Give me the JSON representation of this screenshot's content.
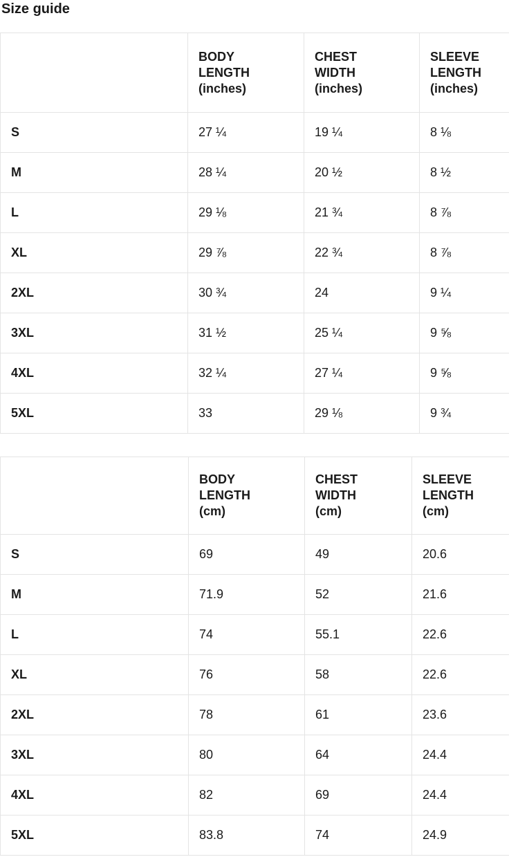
{
  "page": {
    "title": "Size guide"
  },
  "colors": {
    "background": "#ffffff",
    "text": "#1a1a1a",
    "table_border": "#e4e4e4"
  },
  "tables": [
    {
      "name": "sizes-inches",
      "headers": [
        "",
        "BODY\nLENGTH\n(inches)",
        "CHEST\nWIDTH\n(inches)",
        "SLEEVE\nLENGTH\n(inches)"
      ],
      "rows": [
        {
          "size": "S",
          "body_length": "27 ¼",
          "chest_width": "19 ¼",
          "sleeve_length": "8 ⅛"
        },
        {
          "size": "M",
          "body_length": "28 ¼",
          "chest_width": "20 ½",
          "sleeve_length": "8 ½"
        },
        {
          "size": "L",
          "body_length": "29 ⅛",
          "chest_width": "21 ¾",
          "sleeve_length": "8 ⅞"
        },
        {
          "size": "XL",
          "body_length": "29 ⅞",
          "chest_width": "22 ¾",
          "sleeve_length": "8 ⅞"
        },
        {
          "size": "2XL",
          "body_length": "30 ¾",
          "chest_width": "24",
          "sleeve_length": "9 ¼"
        },
        {
          "size": "3XL",
          "body_length": "31 ½",
          "chest_width": "25 ¼",
          "sleeve_length": "9 ⅝"
        },
        {
          "size": "4XL",
          "body_length": "32 ¼",
          "chest_width": "27 ¼",
          "sleeve_length": "9 ⅝"
        },
        {
          "size": "5XL",
          "body_length": "33",
          "chest_width": "29 ⅛",
          "sleeve_length": "9 ¾"
        }
      ]
    },
    {
      "name": "sizes-cm",
      "headers": [
        "",
        "BODY\nLENGTH\n(cm)",
        "CHEST\nWIDTH\n(cm)",
        "SLEEVE\nLENGTH\n(cm)"
      ],
      "rows": [
        {
          "size": "S",
          "body_length": "69",
          "chest_width": "49",
          "sleeve_length": "20.6"
        },
        {
          "size": "M",
          "body_length": "71.9",
          "chest_width": "52",
          "sleeve_length": "21.6"
        },
        {
          "size": "L",
          "body_length": "74",
          "chest_width": "55.1",
          "sleeve_length": "22.6"
        },
        {
          "size": "XL",
          "body_length": "76",
          "chest_width": "58",
          "sleeve_length": "22.6"
        },
        {
          "size": "2XL",
          "body_length": "78",
          "chest_width": "61",
          "sleeve_length": "23.6"
        },
        {
          "size": "3XL",
          "body_length": "80",
          "chest_width": "64",
          "sleeve_length": "24.4"
        },
        {
          "size": "4XL",
          "body_length": "82",
          "chest_width": "69",
          "sleeve_length": "24.4"
        },
        {
          "size": "5XL",
          "body_length": "83.8",
          "chest_width": "74",
          "sleeve_length": "24.9"
        }
      ]
    }
  ]
}
